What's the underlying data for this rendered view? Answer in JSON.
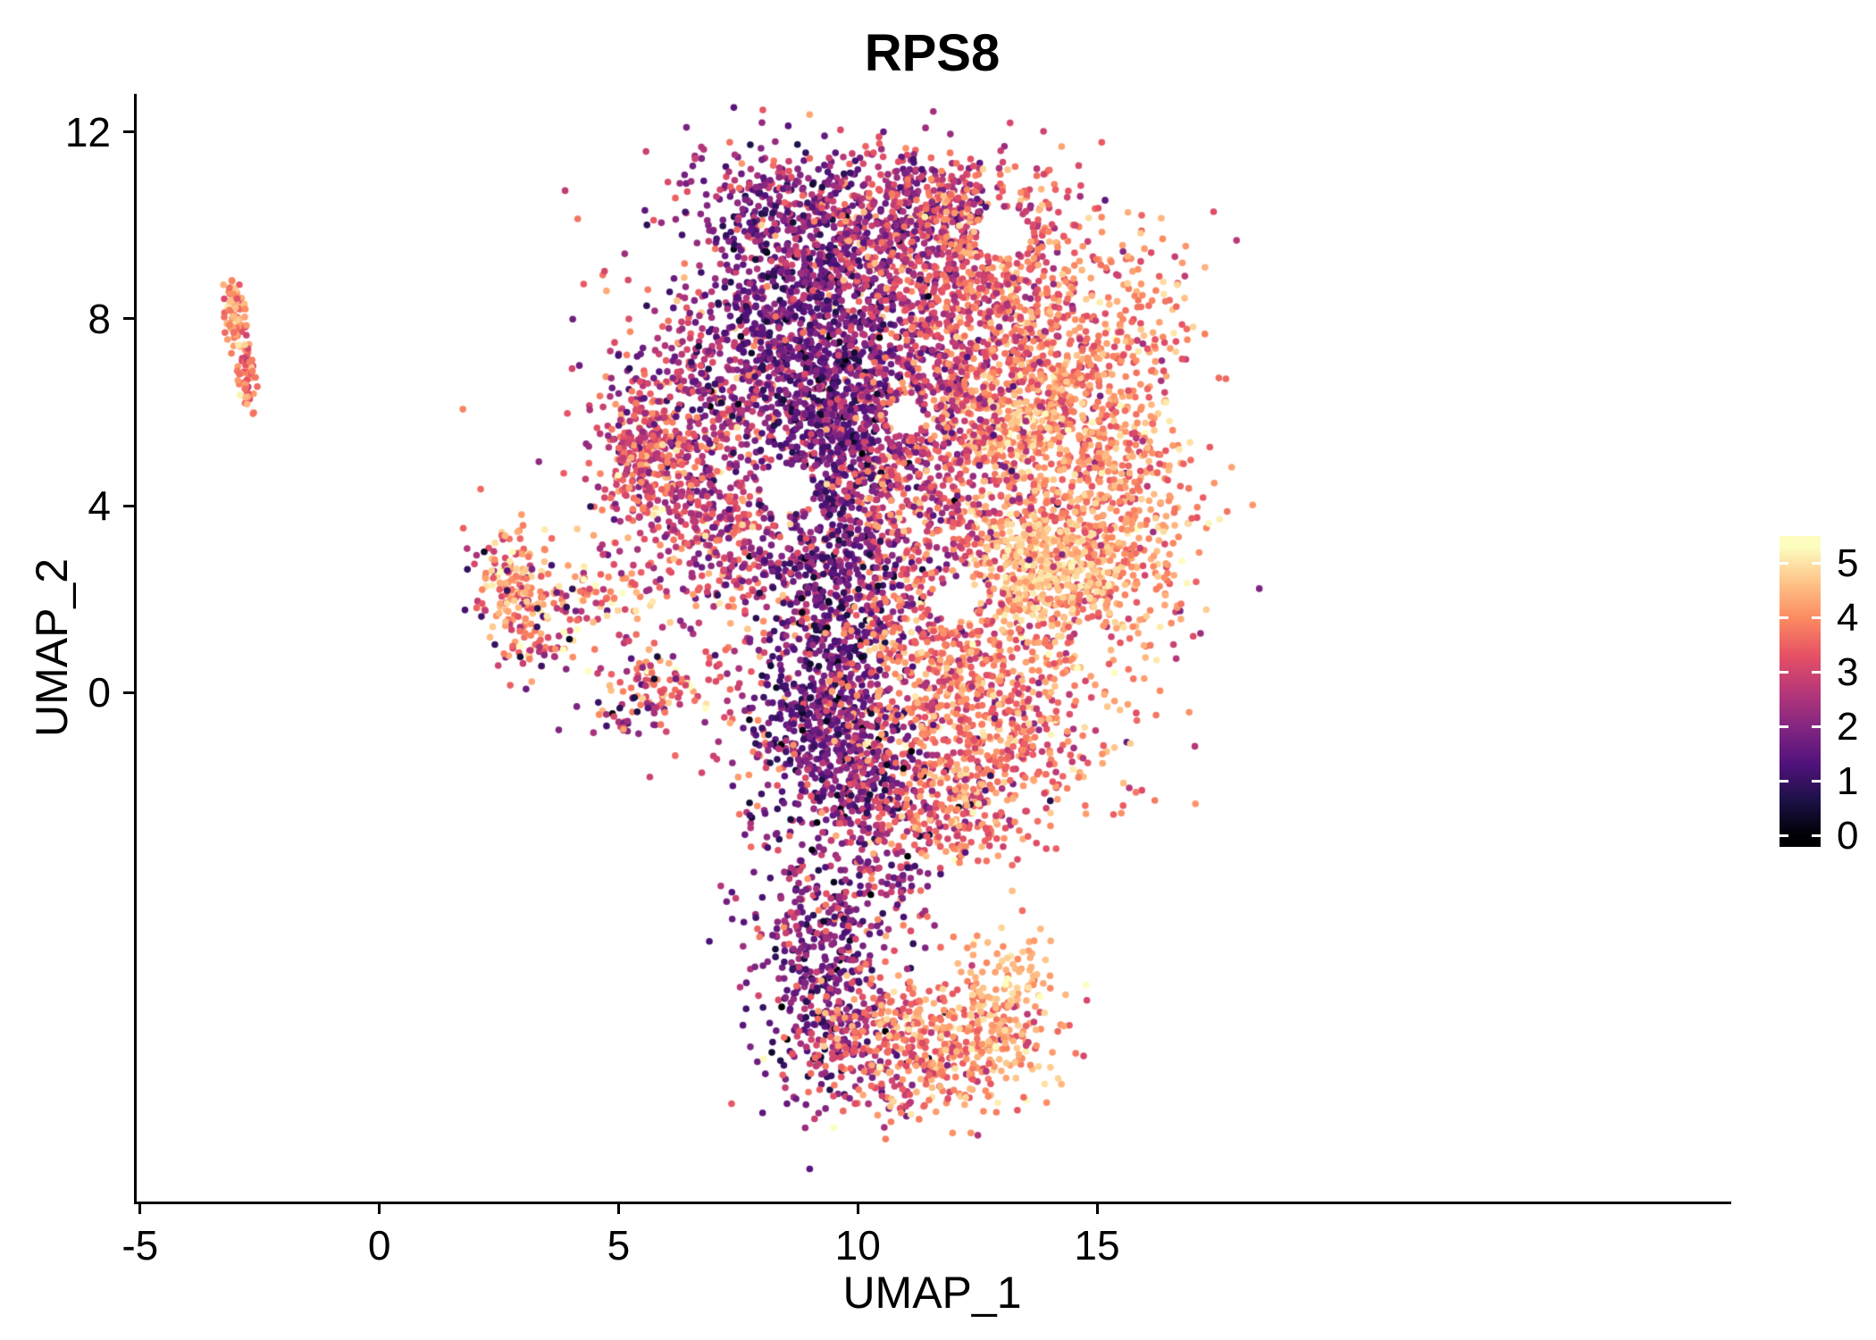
{
  "title": "RPS8",
  "axes": {
    "x_label": "UMAP_1",
    "y_label": "UMAP_2",
    "x_ticks": [
      -5,
      0,
      5,
      10,
      15
    ],
    "y_ticks": [
      0,
      4,
      8,
      12
    ],
    "x_domain": [
      -5.09,
      28.2
    ],
    "y_domain": [
      -10.9,
      12.82
    ]
  },
  "legend": {
    "tick_values": [
      5,
      4,
      3,
      2,
      1,
      0
    ],
    "bar_vmin": -0.2,
    "bar_vmax": 5.5
  },
  "chart_data": {
    "type": "scatter",
    "title": "RPS8",
    "xlabel": "UMAP_1",
    "ylabel": "UMAP_2",
    "xlim": [
      -5.09,
      28.2
    ],
    "ylim": [
      -10.9,
      12.82
    ],
    "legend_position": "right",
    "grid": false,
    "point_radius_px": 3.8,
    "seed": 42,
    "color_scale": {
      "cmin": 0,
      "cmax": 5.3
    },
    "colormap": {
      "name": "magma",
      "stops": [
        [
          0.0,
          "#000004"
        ],
        [
          0.125,
          "#1d1147"
        ],
        [
          0.25,
          "#51127c"
        ],
        [
          0.375,
          "#822681"
        ],
        [
          0.5,
          "#b73779"
        ],
        [
          0.625,
          "#e65164"
        ],
        [
          0.75,
          "#fc8961"
        ],
        [
          0.875,
          "#fec287"
        ],
        [
          1.0,
          "#fcfdbf"
        ]
      ]
    },
    "generation": "gaussian-mixture",
    "clusters": [
      {
        "name": "fill-main-broad",
        "n": 850,
        "cx": 10.6,
        "cy": 4.2,
        "sx": 2.7,
        "sy": 3.3,
        "expr": 3.1,
        "esd": 0.8
      },
      {
        "name": "fill-main-upper",
        "n": 300,
        "cx": 10.6,
        "cy": 8.6,
        "sx": 2.3,
        "sy": 1.7,
        "expr": 2.9,
        "esd": 0.9
      },
      {
        "name": "fill-main-lower",
        "n": 200,
        "cx": 10.8,
        "cy": -0.5,
        "sx": 2.2,
        "sy": 1.4,
        "expr": 3.2,
        "esd": 0.8
      },
      {
        "name": "left-island-top",
        "n": 80,
        "cx": -3.02,
        "cy": 8.05,
        "sx": 0.11,
        "sy": 0.4,
        "expr": 4.15,
        "esd": 0.5
      },
      {
        "name": "left-island-bottom",
        "n": 55,
        "cx": -2.78,
        "cy": 6.75,
        "sx": 0.1,
        "sy": 0.35,
        "expr": 3.7,
        "esd": 0.6
      },
      {
        "name": "mid-cluster-core",
        "n": 150,
        "cx": 2.85,
        "cy": 2.35,
        "sx": 0.42,
        "sy": 0.6,
        "expr": 4.0,
        "esd": 0.75
      },
      {
        "name": "mid-cluster-lower",
        "n": 60,
        "cx": 3.3,
        "cy": 1.15,
        "sx": 0.45,
        "sy": 0.45,
        "expr": 3.5,
        "esd": 0.9
      },
      {
        "name": "mid-cluster-arm",
        "n": 70,
        "cx": 4.5,
        "cy": 2.05,
        "sx": 0.75,
        "sy": 0.35,
        "expr": 3.8,
        "esd": 0.85
      },
      {
        "name": "mid-cluster-tip",
        "n": 65,
        "cx": 5.7,
        "cy": 0.2,
        "sx": 0.5,
        "sy": 0.3,
        "expr": 3.8,
        "esd": 0.7
      },
      {
        "name": "mid-cluster-stray",
        "n": 28,
        "cx": 5.1,
        "cy": -0.55,
        "sx": 0.4,
        "sy": 0.22,
        "expr": 2.6,
        "esd": 1.1
      },
      {
        "name": "mid-cluster-dark-sprinkle",
        "n": 18,
        "cx": 3.1,
        "cy": 1.9,
        "sx": 0.6,
        "sy": 0.8,
        "expr": 1.0,
        "esd": 0.6
      },
      {
        "name": "mid-tip-dark-sprinkle",
        "n": 8,
        "cx": 5.6,
        "cy": 0.1,
        "sx": 0.4,
        "sy": 0.3,
        "expr": 1.2,
        "esd": 0.6
      },
      {
        "name": "left-wing",
        "n": 420,
        "cx": 6.4,
        "cy": 5.2,
        "sx": 0.95,
        "sy": 1.35,
        "expr": 2.7,
        "esd": 0.9
      },
      {
        "name": "left-edge",
        "n": 200,
        "cx": 5.6,
        "cy": 5.1,
        "sx": 0.5,
        "sy": 0.85,
        "expr": 3.3,
        "esd": 0.8
      },
      {
        "name": "left-wing-lower",
        "n": 230,
        "cx": 7.3,
        "cy": 3.1,
        "sx": 0.9,
        "sy": 1.0,
        "expr": 2.9,
        "esd": 0.9
      },
      {
        "name": "left-wing-upper",
        "n": 170,
        "cx": 7.6,
        "cy": 7.2,
        "sx": 0.9,
        "sy": 1.0,
        "expr": 2.3,
        "esd": 0.8
      },
      {
        "name": "dark-band-upper",
        "n": 650,
        "cx": 8.9,
        "cy": 8.0,
        "sx": 1.0,
        "sy": 1.4,
        "expr": 1.5,
        "esd": 0.6
      },
      {
        "name": "dark-band-mid",
        "n": 420,
        "cx": 9.6,
        "cy": 5.4,
        "sx": 0.75,
        "sy": 1.2,
        "expr": 1.6,
        "esd": 0.6
      },
      {
        "name": "dark-band-lower",
        "n": 480,
        "cx": 9.5,
        "cy": 1.9,
        "sx": 0.8,
        "sy": 1.4,
        "expr": 1.5,
        "esd": 0.6
      },
      {
        "name": "dark-band-bottom",
        "n": 420,
        "cx": 9.4,
        "cy": -0.9,
        "sx": 0.8,
        "sy": 1.1,
        "expr": 1.7,
        "esd": 0.7
      },
      {
        "name": "purple-spill-right",
        "n": 220,
        "cx": 10.6,
        "cy": 7.0,
        "sx": 1.0,
        "sy": 1.1,
        "expr": 2.1,
        "esd": 0.7
      },
      {
        "name": "top-cap",
        "n": 520,
        "cx": 10.3,
        "cy": 9.9,
        "sx": 1.35,
        "sy": 0.85,
        "expr": 2.4,
        "esd": 0.8
      },
      {
        "name": "top-right",
        "n": 230,
        "cx": 11.9,
        "cy": 10.2,
        "sx": 1.0,
        "sy": 0.65,
        "expr": 3.1,
        "esd": 0.8
      },
      {
        "name": "upper-right-orange",
        "n": 150,
        "cx": 13.0,
        "cy": 9.3,
        "sx": 0.8,
        "sy": 0.75,
        "expr": 3.8,
        "esd": 0.6
      },
      {
        "name": "right-upper",
        "n": 600,
        "cx": 14.2,
        "cy": 6.6,
        "sx": 1.15,
        "sy": 1.5,
        "expr": 3.9,
        "esd": 0.55
      },
      {
        "name": "right-lower",
        "n": 650,
        "cx": 14.6,
        "cy": 3.2,
        "sx": 1.15,
        "sy": 1.5,
        "expr": 4.1,
        "esd": 0.5
      },
      {
        "name": "bright-patch",
        "n": 240,
        "cx": 13.9,
        "cy": 2.65,
        "sx": 0.7,
        "sy": 0.6,
        "expr": 4.8,
        "esd": 0.25
      },
      {
        "name": "bright-spot",
        "n": 140,
        "cx": 13.1,
        "cy": 5.6,
        "sx": 0.55,
        "sy": 0.5,
        "expr": 4.5,
        "esd": 0.4
      },
      {
        "name": "right-transition",
        "n": 300,
        "cx": 12.5,
        "cy": 7.9,
        "sx": 1.0,
        "sy": 1.1,
        "expr": 3.4,
        "esd": 0.7
      },
      {
        "name": "center-transition",
        "n": 480,
        "cx": 11.5,
        "cy": 4.7,
        "sx": 1.15,
        "sy": 1.5,
        "expr": 3.0,
        "esd": 0.75
      },
      {
        "name": "lower-right-band",
        "n": 340,
        "cx": 11.9,
        "cy": 0.6,
        "sx": 1.15,
        "sy": 1.0,
        "expr": 3.9,
        "esd": 0.6
      },
      {
        "name": "lower-right-edge",
        "n": 280,
        "cx": 12.8,
        "cy": -0.9,
        "sx": 1.15,
        "sy": 0.8,
        "expr": 3.7,
        "esd": 0.7
      },
      {
        "name": "bottom-main-dark",
        "n": 280,
        "cx": 10.4,
        "cy": -2.3,
        "sx": 1.05,
        "sy": 0.85,
        "expr": 2.3,
        "esd": 0.9
      },
      {
        "name": "bottom-main-orange",
        "n": 180,
        "cx": 12.1,
        "cy": -2.6,
        "sx": 0.95,
        "sy": 0.7,
        "expr": 3.8,
        "esd": 0.6
      },
      {
        "name": "lobe-dark-left",
        "n": 330,
        "cx": 9.3,
        "cy": -6.1,
        "sx": 0.65,
        "sy": 1.25,
        "expr": 1.8,
        "esd": 0.8
      },
      {
        "name": "lobe-mid",
        "n": 150,
        "cx": 10.2,
        "cy": -7.7,
        "sx": 0.75,
        "sy": 0.75,
        "expr": 2.7,
        "esd": 0.9
      },
      {
        "name": "lobe-orange-right",
        "n": 430,
        "cx": 11.7,
        "cy": -7.4,
        "sx": 1.15,
        "sy": 0.85,
        "expr": 3.9,
        "esd": 0.6
      },
      {
        "name": "lobe-bright-right",
        "n": 110,
        "cx": 13.1,
        "cy": -6.6,
        "sx": 0.5,
        "sy": 0.75,
        "expr": 4.5,
        "esd": 0.4
      },
      {
        "name": "lobe-connector",
        "n": 140,
        "cx": 9.7,
        "cy": -4.5,
        "sx": 1.1,
        "sy": 0.55,
        "expr": 2.2,
        "esd": 0.9
      },
      {
        "name": "top-left-sparse",
        "n": 120,
        "cx": 8.2,
        "cy": 10.6,
        "sx": 1.0,
        "sy": 0.6,
        "expr": 2.2,
        "esd": 0.8
      },
      {
        "name": "right-edge-upper",
        "n": 90,
        "cx": 15.6,
        "cy": 8.0,
        "sx": 0.7,
        "sy": 1.1,
        "expr": 3.9,
        "esd": 0.5
      },
      {
        "name": "right-edge-lower",
        "n": 90,
        "cx": 15.9,
        "cy": 4.0,
        "sx": 0.6,
        "sy": 1.3,
        "expr": 4.0,
        "esd": 0.5
      }
    ],
    "holes": [
      {
        "cx": 8.55,
        "cy": 4.35,
        "r": 0.5
      },
      {
        "cx": 13.05,
        "cy": 9.85,
        "r": 0.55
      },
      {
        "cx": 12.1,
        "cy": 2.0,
        "r": 0.45
      },
      {
        "cx": 12.4,
        "cy": -4.4,
        "r": 0.8
      },
      {
        "cx": 14.9,
        "cy": 1.05,
        "r": 0.4
      },
      {
        "cx": 11.0,
        "cy": 5.9,
        "r": 0.4
      }
    ]
  }
}
